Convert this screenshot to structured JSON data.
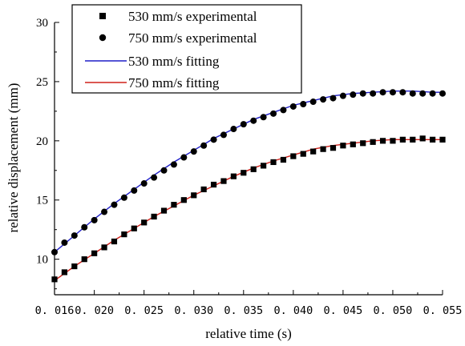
{
  "chart_data": {
    "type": "scatter",
    "xlabel": "relative time (s)",
    "ylabel": "relative displacement (mm)",
    "xlim": [
      0.016,
      0.055
    ],
    "ylim": [
      7,
      30
    ],
    "xticks": [
      {
        "value": 0.016,
        "label": "0. 016"
      },
      {
        "value": 0.02,
        "label": "0. 020"
      },
      {
        "value": 0.025,
        "label": "0. 025"
      },
      {
        "value": 0.03,
        "label": "0. 030"
      },
      {
        "value": 0.035,
        "label": "0. 035"
      },
      {
        "value": 0.04,
        "label": "0. 040"
      },
      {
        "value": 0.045,
        "label": "0. 045"
      },
      {
        "value": 0.05,
        "label": "0. 050"
      },
      {
        "value": 0.055,
        "label": "0. 055"
      }
    ],
    "yticks": [
      {
        "value": 10,
        "label": "10"
      },
      {
        "value": 15,
        "label": "15"
      },
      {
        "value": 20,
        "label": "20"
      },
      {
        "value": 25,
        "label": "25"
      },
      {
        "value": 30,
        "label": "30"
      }
    ],
    "grid": false,
    "legend_position": "top-left",
    "series": [
      {
        "name": "530 mm/s experimental",
        "kind": "scatter",
        "marker": "square",
        "color": "#000000",
        "x": [
          0.016,
          0.017,
          0.018,
          0.019,
          0.02,
          0.021,
          0.022,
          0.023,
          0.024,
          0.025,
          0.026,
          0.027,
          0.028,
          0.029,
          0.03,
          0.031,
          0.032,
          0.033,
          0.034,
          0.035,
          0.036,
          0.037,
          0.038,
          0.039,
          0.04,
          0.041,
          0.042,
          0.043,
          0.044,
          0.045,
          0.046,
          0.047,
          0.048,
          0.049,
          0.05,
          0.051,
          0.052,
          0.053,
          0.054,
          0.055
        ],
        "y": [
          8.3,
          8.9,
          9.4,
          10.0,
          10.5,
          11.0,
          11.5,
          12.1,
          12.6,
          13.1,
          13.6,
          14.1,
          14.6,
          15.0,
          15.4,
          15.9,
          16.3,
          16.6,
          17.0,
          17.3,
          17.6,
          17.9,
          18.2,
          18.4,
          18.7,
          18.9,
          19.1,
          19.3,
          19.4,
          19.6,
          19.7,
          19.8,
          19.9,
          20.0,
          20.0,
          20.1,
          20.1,
          20.2,
          20.1,
          20.1
        ]
      },
      {
        "name": "750 mm/s experimental",
        "kind": "scatter",
        "marker": "circle",
        "color": "#000000",
        "x": [
          0.016,
          0.017,
          0.018,
          0.019,
          0.02,
          0.021,
          0.022,
          0.023,
          0.024,
          0.025,
          0.026,
          0.027,
          0.028,
          0.029,
          0.03,
          0.031,
          0.032,
          0.033,
          0.034,
          0.035,
          0.036,
          0.037,
          0.038,
          0.039,
          0.04,
          0.041,
          0.042,
          0.043,
          0.044,
          0.045,
          0.046,
          0.047,
          0.048,
          0.049,
          0.05,
          0.051,
          0.052,
          0.053,
          0.054,
          0.055
        ],
        "y": [
          10.6,
          11.4,
          12.0,
          12.7,
          13.3,
          14.0,
          14.6,
          15.2,
          15.8,
          16.4,
          16.9,
          17.5,
          18.0,
          18.6,
          19.1,
          19.6,
          20.1,
          20.5,
          21.0,
          21.4,
          21.7,
          22.0,
          22.3,
          22.6,
          22.9,
          23.1,
          23.3,
          23.5,
          23.6,
          23.8,
          23.9,
          24.0,
          24.0,
          24.1,
          24.1,
          24.1,
          24.0,
          24.0,
          24.0,
          24.0
        ]
      },
      {
        "name": "530 mm/s fitting",
        "kind": "line",
        "color": "#1f1fc8",
        "x": [
          0.016,
          0.018,
          0.02,
          0.022,
          0.024,
          0.026,
          0.028,
          0.03,
          0.032,
          0.034,
          0.036,
          0.038,
          0.04,
          0.042,
          0.044,
          0.046,
          0.048,
          0.05,
          0.052,
          0.054,
          0.055
        ],
        "y": [
          10.6,
          12.0,
          13.4,
          14.7,
          15.9,
          17.1,
          18.2,
          19.2,
          20.2,
          21.0,
          21.8,
          22.4,
          23.0,
          23.4,
          23.8,
          24.0,
          24.1,
          24.2,
          24.2,
          24.1,
          24.1
        ]
      },
      {
        "name": "750 mm/s fitting",
        "kind": "line",
        "color": "#d0201a",
        "x": [
          0.016,
          0.018,
          0.02,
          0.022,
          0.024,
          0.026,
          0.028,
          0.03,
          0.032,
          0.034,
          0.036,
          0.038,
          0.04,
          0.042,
          0.044,
          0.046,
          0.048,
          0.05,
          0.052,
          0.054,
          0.055
        ],
        "y": [
          8.2,
          9.4,
          10.5,
          11.6,
          12.6,
          13.6,
          14.5,
          15.4,
          16.2,
          17.0,
          17.7,
          18.3,
          18.8,
          19.3,
          19.6,
          19.8,
          20.0,
          20.1,
          20.1,
          20.1,
          20.1
        ]
      }
    ]
  }
}
